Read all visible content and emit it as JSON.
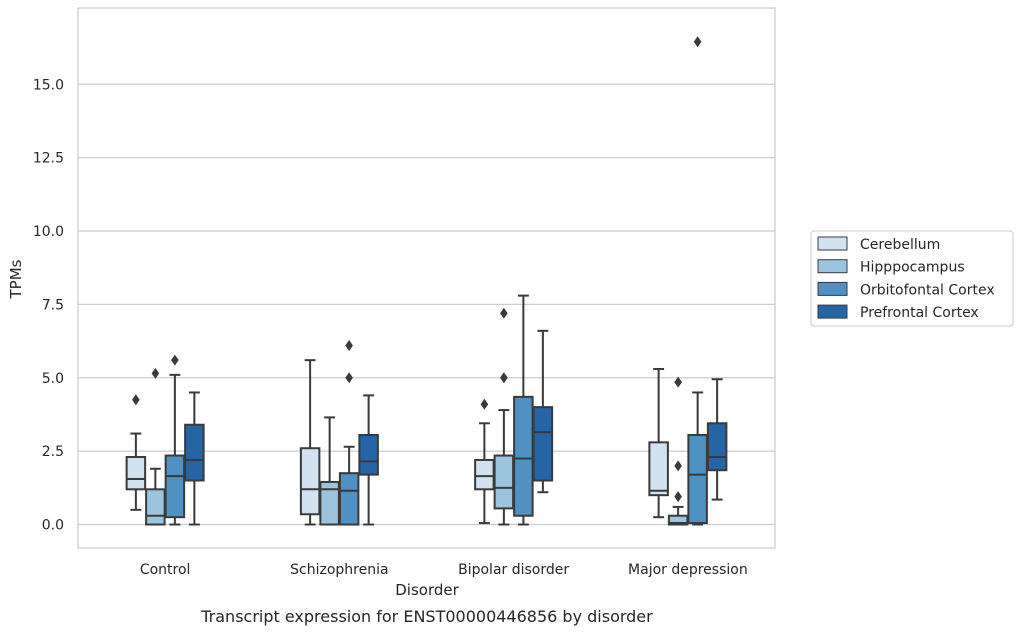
{
  "caption": "Transcript expression for ENST00000446856 by disorder",
  "colors": {
    "Cerebellum": "#d3e2f1",
    "Hipppocampus": "#9dc4de",
    "Orbitofontal Cortex": "#4e91c2",
    "Prefrontal Cortex": "#2565a6",
    "outline": "#3a3a3a",
    "grid": "#cccccc"
  },
  "chart_data": {
    "type": "boxplot",
    "xlabel": "Disorder",
    "ylabel": "TPMs",
    "ylim": [
      -0.8,
      17.6
    ],
    "yticks": [
      0.0,
      2.5,
      5.0,
      7.5,
      10.0,
      12.5,
      15.0
    ],
    "ytick_labels": [
      "0.0",
      "2.5",
      "5.0",
      "7.5",
      "10.0",
      "12.5",
      "15.0"
    ],
    "grid": "horizontal",
    "legend_position": "right",
    "categories": [
      "Control",
      "Schizophrenia",
      "Bipolar disorder",
      "Major depression"
    ],
    "series": [
      {
        "name": "Cerebellum",
        "boxes": [
          {
            "whislo": 0.5,
            "q1": 1.2,
            "med": 1.55,
            "q3": 2.3,
            "whishi": 3.1,
            "fliers": [
              4.25
            ]
          },
          {
            "whislo": 0.0,
            "q1": 0.35,
            "med": 1.2,
            "q3": 2.6,
            "whishi": 5.6,
            "fliers": []
          },
          {
            "whislo": 0.05,
            "q1": 1.2,
            "med": 1.65,
            "q3": 2.2,
            "whishi": 3.45,
            "fliers": [
              4.1
            ]
          },
          {
            "whislo": 0.25,
            "q1": 1.0,
            "med": 1.15,
            "q3": 2.8,
            "whishi": 5.3,
            "fliers": []
          }
        ]
      },
      {
        "name": "Hipppocampus",
        "boxes": [
          {
            "whislo": 0.0,
            "q1": 0.0,
            "med": 0.3,
            "q3": 1.2,
            "whishi": 1.9,
            "fliers": [
              5.15
            ]
          },
          {
            "whislo": 0.0,
            "q1": 0.0,
            "med": 1.2,
            "q3": 1.45,
            "whishi": 3.65,
            "fliers": []
          },
          {
            "whislo": 0.0,
            "q1": 0.55,
            "med": 1.25,
            "q3": 2.35,
            "whishi": 3.9,
            "fliers": [
              5.0,
              7.2
            ]
          },
          {
            "whislo": 0.0,
            "q1": 0.0,
            "med": 0.05,
            "q3": 0.3,
            "whishi": 0.6,
            "fliers": [
              0.95,
              2.0,
              4.85
            ]
          }
        ]
      },
      {
        "name": "Orbitofontal Cortex",
        "boxes": [
          {
            "whislo": 0.0,
            "q1": 0.25,
            "med": 1.65,
            "q3": 2.35,
            "whishi": 5.1,
            "fliers": [
              5.6
            ]
          },
          {
            "whislo": 0.0,
            "q1": 0.0,
            "med": 1.15,
            "q3": 1.75,
            "whishi": 2.65,
            "fliers": [
              5.0,
              6.1
            ]
          },
          {
            "whislo": 0.0,
            "q1": 0.3,
            "med": 2.25,
            "q3": 4.35,
            "whishi": 7.8,
            "fliers": []
          },
          {
            "whislo": 0.0,
            "q1": 0.05,
            "med": 1.7,
            "q3": 3.05,
            "whishi": 4.5,
            "fliers": [
              16.45
            ]
          }
        ]
      },
      {
        "name": "Prefrontal Cortex",
        "boxes": [
          {
            "whislo": 0.0,
            "q1": 1.5,
            "med": 2.2,
            "q3": 3.4,
            "whishi": 4.5,
            "fliers": []
          },
          {
            "whislo": 0.0,
            "q1": 1.7,
            "med": 2.15,
            "q3": 3.05,
            "whishi": 4.4,
            "fliers": []
          },
          {
            "whislo": 1.1,
            "q1": 1.5,
            "med": 3.15,
            "q3": 4.0,
            "whishi": 6.6,
            "fliers": []
          },
          {
            "whislo": 0.85,
            "q1": 1.85,
            "med": 2.3,
            "q3": 3.45,
            "whishi": 4.95,
            "fliers": []
          }
        ]
      }
    ]
  }
}
